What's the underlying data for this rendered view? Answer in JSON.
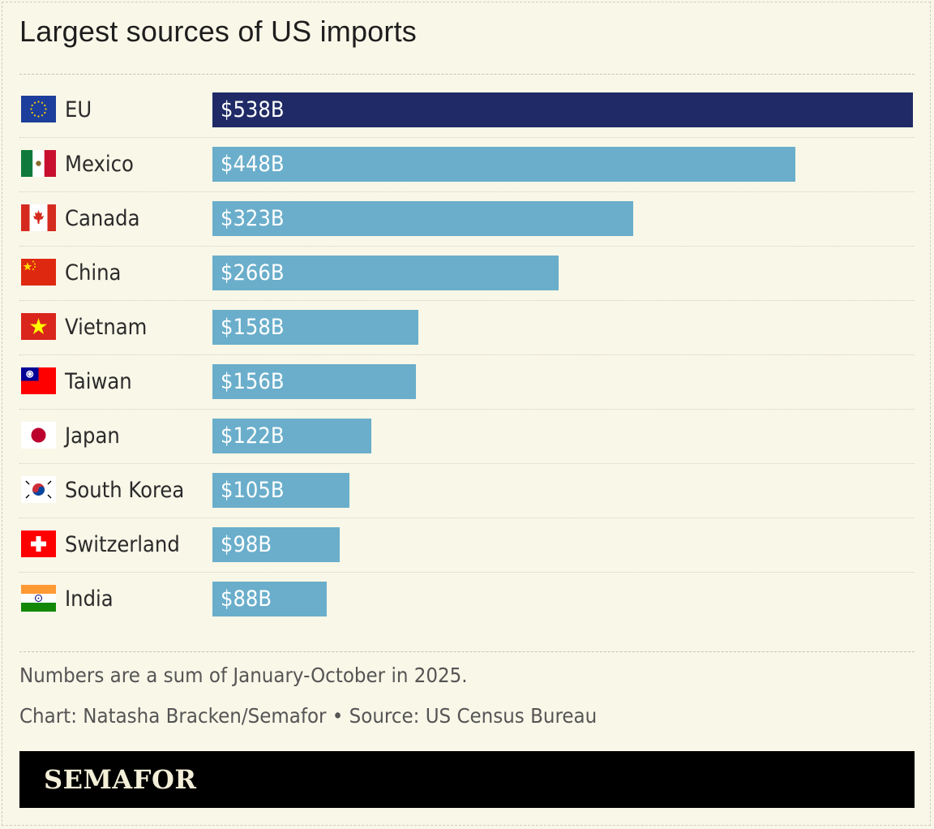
{
  "title": "Largest sources of US imports",
  "chart_data": {
    "type": "bar",
    "orientation": "horizontal",
    "title": "Largest sources of US imports",
    "categories": [
      "EU",
      "Mexico",
      "Canada",
      "China",
      "Vietnam",
      "Taiwan",
      "Japan",
      "South Korea",
      "Switzerland",
      "India"
    ],
    "values": [
      538,
      448,
      323,
      266,
      158,
      156,
      122,
      105,
      98,
      88
    ],
    "value_labels": [
      "$538B",
      "$448B",
      "$323B",
      "$266B",
      "$158B",
      "$156B",
      "$122B",
      "$105B",
      "$98B",
      "$88B"
    ],
    "highlight_index": 0,
    "colors": {
      "highlight": "#1f2a66",
      "bar": "#6aaecb"
    },
    "flags": [
      "eu-flag-icon",
      "mexico-flag-icon",
      "canada-flag-icon",
      "china-flag-icon",
      "vietnam-flag-icon",
      "taiwan-flag-icon",
      "japan-flag-icon",
      "south-korea-flag-icon",
      "switzerland-flag-icon",
      "india-flag-icon"
    ],
    "xlim": [
      0,
      538
    ],
    "grid": false,
    "legend": "none"
  },
  "notes": {
    "footnote": "Numbers are a sum of January-October in 2025.",
    "credit": "Chart: Natasha Bracken/Semafor • Source: US Census Bureau"
  },
  "brand": {
    "name": "SEMAFOR"
  }
}
